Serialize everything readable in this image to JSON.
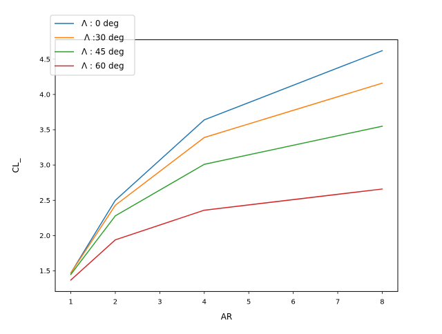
{
  "chart_data": {
    "type": "line",
    "title": "",
    "xlabel": "AR",
    "ylabel": "CL_",
    "x": [
      1,
      2,
      4,
      8
    ],
    "xlim": [
      0.65,
      8.35
    ],
    "ylim": [
      1.208,
      4.775
    ],
    "xticks": [
      1,
      2,
      3,
      4,
      5,
      6,
      7,
      8
    ],
    "xtick_labels": [
      "1",
      "2",
      "3",
      "4",
      "5",
      "6",
      "7",
      "8"
    ],
    "yticks": [
      1.5,
      2.0,
      2.5,
      3.0,
      3.5,
      4.0,
      4.5
    ],
    "ytick_labels": [
      "1.5",
      "2.0",
      "2.5",
      "3.0",
      "3.5",
      "4.0",
      "4.5"
    ],
    "grid": false,
    "legend_position": "upper left",
    "series": [
      {
        "name": "Λ : 0 deg",
        "color": "#1f77b4",
        "values": [
          1.47,
          2.5,
          3.64,
          4.62
        ]
      },
      {
        "name": " Λ :30 deg",
        "color": "#ff7f0e",
        "values": [
          1.47,
          2.43,
          3.39,
          4.16
        ]
      },
      {
        "name": "Λ : 45 deg",
        "color": "#2ca02c",
        "values": [
          1.45,
          2.28,
          3.01,
          3.55
        ]
      },
      {
        "name": "Λ : 60 deg",
        "color": "#d62728",
        "values": [
          1.37,
          1.94,
          2.36,
          2.66
        ]
      }
    ]
  }
}
